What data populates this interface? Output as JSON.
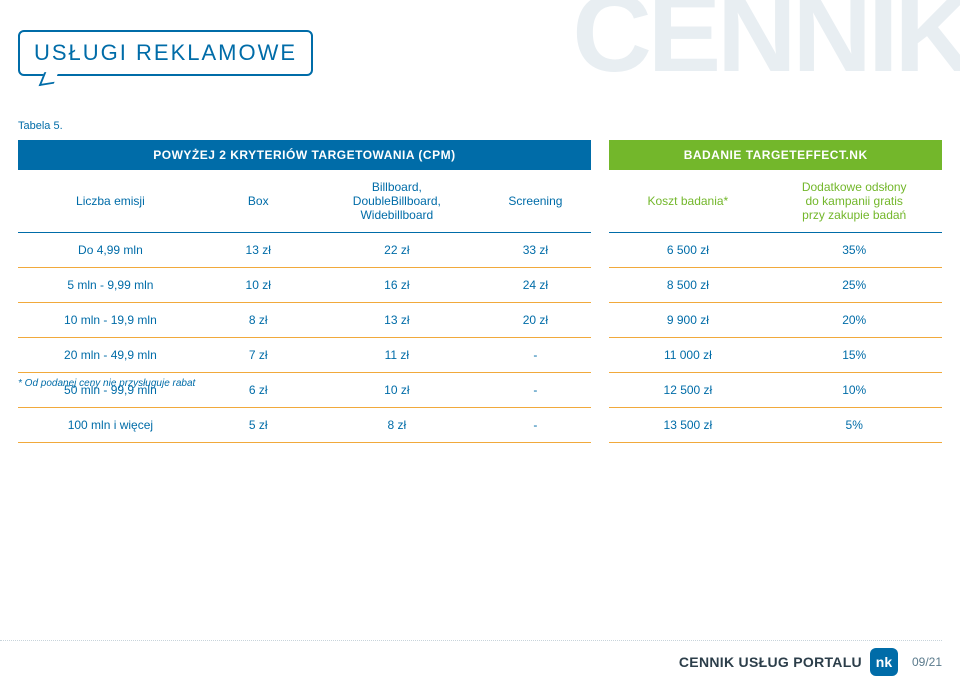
{
  "watermark": "CENNIK",
  "header": {
    "title": "USŁUGI REKLAMOWE"
  },
  "caption": "Tabela 5.",
  "table": {
    "band1_left": "POWYŻEJ 2 KRYTERIÓW TARGETOWANIA (CPM)",
    "band1_right": "BADANIE TARGETEFFECT.NK",
    "sub": {
      "c1": "Liczba emisji",
      "c2": "Box",
      "c3": "Billboard,\nDoubleBillboard,\nWidebillboard",
      "c4": "Screening",
      "c5": "Koszt badania*",
      "c6": "Dodatkowe odsłony\ndo kampanii gratis\nprzy zakupie badań"
    },
    "rows": [
      {
        "c1": "Do 4,99 mln",
        "c2": "13 zł",
        "c3": "22 zł",
        "c4": "33 zł",
        "c5": "6 500 zł",
        "c6": "35%"
      },
      {
        "c1": "5 mln - 9,99 mln",
        "c2": "10 zł",
        "c3": "16 zł",
        "c4": "24 zł",
        "c5": "8 500 zł",
        "c6": "25%"
      },
      {
        "c1": "10 mln - 19,9 mln",
        "c2": "8 zł",
        "c3": "13 zł",
        "c4": "20 zł",
        "c5": "9 900 zł",
        "c6": "20%"
      },
      {
        "c1": "20 mln - 49,9 mln",
        "c2": "7 zł",
        "c3": "11 zł",
        "c4": "-",
        "c5": "11 000 zł",
        "c6": "15%"
      },
      {
        "c1": "50 mln - 99,9 mln",
        "c2": "6 zł",
        "c3": "10 zł",
        "c4": "-",
        "c5": "12 500 zł",
        "c6": "10%"
      },
      {
        "c1": "100 mln i więcej",
        "c2": "5 zł",
        "c3": "8 zł",
        "c4": "-",
        "c5": "13 500 zł",
        "c6": "5%"
      }
    ],
    "colors": {
      "brand_blue": "#006ca8",
      "brand_green": "#73b72b",
      "row_divider": "#f1a93b",
      "watermark": "#e8eef2"
    },
    "col_widths_pct": [
      20,
      12,
      18,
      12,
      3,
      17,
      18
    ]
  },
  "footnote": "* Od podanej ceny nie przysługuje rabat",
  "footer": {
    "text": "CENNIK USŁUG PORTALU",
    "badge": "nk",
    "page": "09/21"
  }
}
